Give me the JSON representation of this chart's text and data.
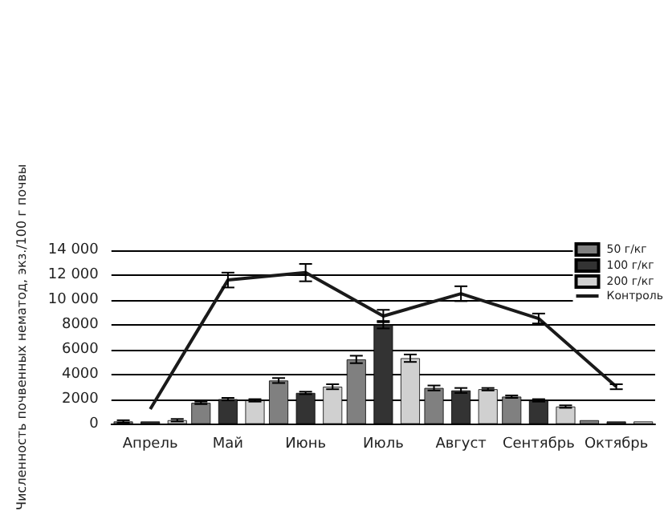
{
  "chart_data": {
    "type": "bar",
    "ylabel": "Численность почвенных нематод, экз./100 г почвы",
    "categories": [
      "Апрель",
      "Май",
      "Июнь",
      "Июль",
      "Август",
      "Сентябрь",
      "Октябрь"
    ],
    "series": [
      {
        "name": "50 г/кг",
        "color": "#808080",
        "values": [
          200,
          1700,
          3500,
          5200,
          2900,
          2200,
          300
        ],
        "errors": [
          100,
          100,
          200,
          300,
          200,
          100,
          null
        ]
      },
      {
        "name": "100 г/кг",
        "color": "#333333",
        "values": [
          200,
          2000,
          2500,
          8000,
          2700,
          1900,
          200
        ],
        "errors": [
          null,
          100,
          100,
          300,
          200,
          100,
          null
        ]
      },
      {
        "name": "200 г/кг",
        "color": "#d0d0d0",
        "values": [
          300,
          1900,
          3000,
          5300,
          2800,
          1400,
          200
        ],
        "errors": [
          100,
          100,
          200,
          300,
          100,
          100,
          null
        ]
      },
      {
        "name": "Контроль",
        "type": "line",
        "color": "#1a1a1a",
        "values": [
          1200,
          11600,
          12200,
          8700,
          10500,
          8500,
          3000
        ],
        "errors": [
          null,
          600,
          700,
          500,
          600,
          400,
          200
        ]
      }
    ],
    "ylim": [
      0,
      14000
    ],
    "yticks": [
      {
        "value": 0,
        "label": "0"
      },
      {
        "value": 2000,
        "label": "2000"
      },
      {
        "value": 4000,
        "label": "4000"
      },
      {
        "value": 6000,
        "label": "6000"
      },
      {
        "value": 8000,
        "label": "8000"
      },
      {
        "value": 10000,
        "label": "10 000"
      },
      {
        "value": 12000,
        "label": "12 000"
      },
      {
        "value": 14000,
        "label": "14 000"
      }
    ],
    "grid": "y",
    "legend": "top right",
    "marker": "none",
    "line_style": "solid"
  }
}
